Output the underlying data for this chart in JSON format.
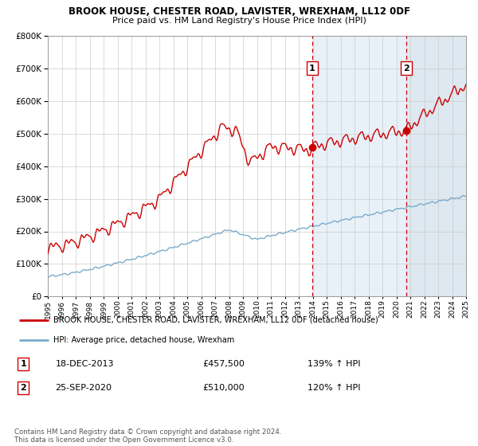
{
  "title": "BROOK HOUSE, CHESTER ROAD, LAVISTER, WREXHAM, LL12 0DF",
  "subtitle": "Price paid vs. HM Land Registry's House Price Index (HPI)",
  "sale1_date": 2013.96,
  "sale1_price": 457500,
  "sale1_label": "1",
  "sale2_date": 2020.73,
  "sale2_price": 510000,
  "sale2_label": "2",
  "red_color": "#cc0000",
  "blue_color": "#7aabcc",
  "shade_color": "#ddeeff",
  "legend_entry1": "BROOK HOUSE, CHESTER ROAD, LAVISTER, WREXHAM, LL12 0DF (detached house)",
  "legend_entry2": "HPI: Average price, detached house, Wrexham",
  "footnote": "Contains HM Land Registry data © Crown copyright and database right 2024.\nThis data is licensed under the Open Government Licence v3.0.",
  "xmin": 1995,
  "xmax": 2025,
  "ymin": 0,
  "ymax": 800000
}
